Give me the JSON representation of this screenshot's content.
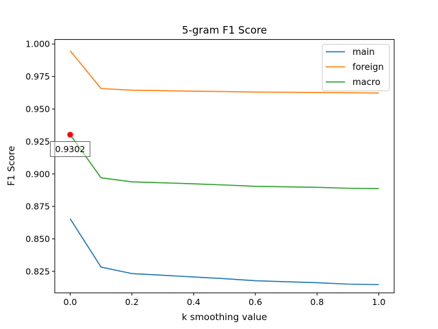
{
  "chart_data": {
    "type": "line",
    "title": "5-gram F1 Score",
    "xlabel": "k smoothing value",
    "ylabel": "F1 Score",
    "x": [
      0.0,
      0.1,
      0.2,
      0.3,
      0.4,
      0.5,
      0.6,
      0.7,
      0.8,
      0.9,
      1.0
    ],
    "xlim": [
      -0.05,
      1.05
    ],
    "ylim": [
      0.8085,
      1.0035
    ],
    "xticks": [
      0.0,
      0.2,
      0.4,
      0.6,
      0.8,
      1.0
    ],
    "xtick_labels": [
      "0.0",
      "0.2",
      "0.4",
      "0.6",
      "0.8",
      "1.0"
    ],
    "yticks": [
      0.825,
      0.85,
      0.875,
      0.9,
      0.925,
      0.95,
      0.975,
      1.0
    ],
    "ytick_labels": [
      "0.825",
      "0.850",
      "0.875",
      "0.900",
      "0.925",
      "0.950",
      "0.975",
      "1.000"
    ],
    "series": [
      {
        "name": "main",
        "color": "#1f77b4",
        "values": [
          0.8655,
          0.8283,
          0.8233,
          0.822,
          0.8207,
          0.8194,
          0.8178,
          0.817,
          0.8163,
          0.8152,
          0.8148
        ]
      },
      {
        "name": "foreign",
        "color": "#ff7f0e",
        "values": [
          0.9948,
          0.9657,
          0.9645,
          0.9641,
          0.9637,
          0.9634,
          0.963,
          0.9629,
          0.9627,
          0.9625,
          0.9623
        ]
      },
      {
        "name": "macro",
        "color": "#2ca02c",
        "values": [
          0.9302,
          0.897,
          0.8939,
          0.8932,
          0.8924,
          0.8915,
          0.8905,
          0.8901,
          0.8897,
          0.889,
          0.8887
        ]
      }
    ],
    "highlight": {
      "x": 0.0,
      "y": 0.9302,
      "label": "0.9302",
      "color": "#ff0000"
    },
    "legend": "top-right",
    "grid": false
  }
}
